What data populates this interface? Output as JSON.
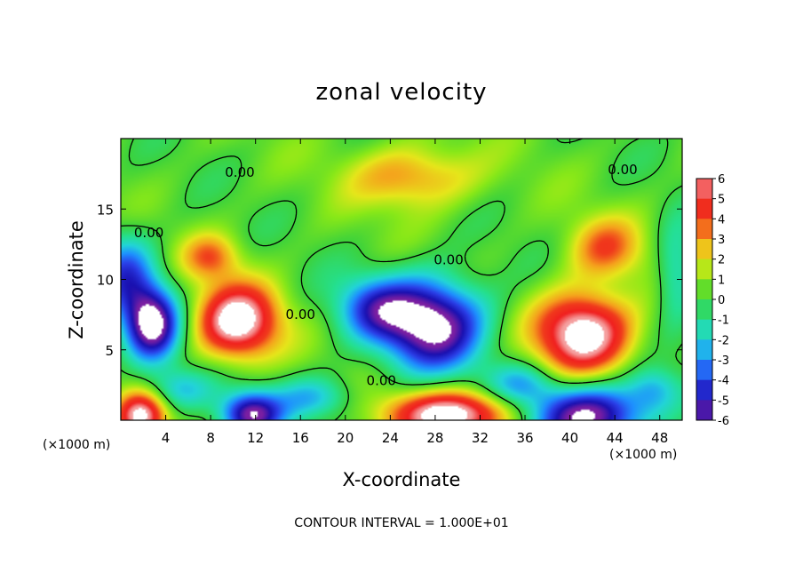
{
  "chart_data": {
    "type": "heatmap",
    "title": "zonal velocity",
    "xlabel": "X-coordinate",
    "ylabel": "Z-coordinate",
    "x_unit_left": "(×1000 m)",
    "x_unit_right": "(×1000 m)",
    "x_ticks": [
      4,
      8,
      12,
      16,
      20,
      24,
      28,
      32,
      36,
      40,
      44,
      48
    ],
    "y_ticks": [
      5,
      10,
      15
    ],
    "xlim": [
      0,
      50
    ],
    "ylim": [
      0,
      20
    ],
    "colorbar": {
      "ticks": [
        6,
        5,
        4,
        3,
        2,
        1,
        0,
        -1,
        -2,
        -3,
        -4,
        -5,
        -6
      ],
      "range": [
        -6,
        6
      ],
      "colors": {
        "-6": "#7a1fa2",
        "-5": "#1a10b0",
        "-4": "#2a3fe8",
        "-3": "#1e90ff",
        "-2": "#22d4d8",
        "-1": "#24e090",
        "0": "#3cd23c",
        "1": "#88e818",
        "2": "#e6e61a",
        "3": "#f5a21c",
        "4": "#f03a1c",
        "5": "#f01f1f",
        "6": "#f5a0a0"
      }
    },
    "contour_labels": [
      {
        "text": "0.00",
        "x": 10.6,
        "y": 17.6
      },
      {
        "text": "0.00",
        "x": 2.5,
        "y": 13.3
      },
      {
        "text": "0.00",
        "x": 16.0,
        "y": 7.5
      },
      {
        "text": "0.00",
        "x": 29.2,
        "y": 11.4
      },
      {
        "text": "0.00",
        "x": 23.2,
        "y": 2.8
      },
      {
        "text": "0.00",
        "x": 44.7,
        "y": 17.8
      }
    ],
    "blobs": [
      {
        "x": 2.8,
        "y": 6.8,
        "v": -7.0,
        "rx": 2.4,
        "ry": 2.6
      },
      {
        "x": 10.4,
        "y": 7.0,
        "v": 7.0,
        "rx": 3.6,
        "ry": 2.6
      },
      {
        "x": 27.8,
        "y": 6.8,
        "v": -7.2,
        "rx": 4.6,
        "ry": 3.2
      },
      {
        "x": 41.2,
        "y": 6.2,
        "v": 7.2,
        "rx": 4.2,
        "ry": 2.8
      },
      {
        "x": 1.8,
        "y": 0.3,
        "v": 6.2,
        "rx": 2.2,
        "ry": 1.7
      },
      {
        "x": 11.6,
        "y": 0.4,
        "v": -6.4,
        "rx": 2.7,
        "ry": 1.6
      },
      {
        "x": 29.5,
        "y": 0.4,
        "v": 7.0,
        "rx": 5.5,
        "ry": 1.7
      },
      {
        "x": 41.5,
        "y": 0.3,
        "v": -7.0,
        "rx": 5.2,
        "ry": 2.2
      },
      {
        "x": 26.0,
        "y": 17.3,
        "v": 3.0,
        "rx": 5.5,
        "ry": 2.2
      },
      {
        "x": 43.2,
        "y": 12.2,
        "v": 3.2,
        "rx": 3.3,
        "ry": 2.2
      },
      {
        "x": 8.0,
        "y": 11.6,
        "v": 3.0,
        "rx": 2.5,
        "ry": 1.6
      },
      {
        "x": 22.6,
        "y": 8.0,
        "v": -3.8,
        "rx": 3.6,
        "ry": 2.2
      },
      {
        "x": 0.5,
        "y": 10.2,
        "v": -4.0,
        "rx": 2.6,
        "ry": 3.0
      },
      {
        "x": 49.5,
        "y": 10.5,
        "v": -2.4,
        "rx": 1.8,
        "ry": 3.5
      },
      {
        "x": 17.2,
        "y": 1.6,
        "v": -2.6,
        "rx": 3.5,
        "ry": 1.5
      },
      {
        "x": 5.2,
        "y": 2.2,
        "v": -2.6,
        "rx": 3.0,
        "ry": 1.5
      },
      {
        "x": 35.5,
        "y": 2.6,
        "v": -2.6,
        "rx": 3.0,
        "ry": 1.5
      },
      {
        "x": 47.5,
        "y": 2.2,
        "v": -2.4,
        "rx": 2.4,
        "ry": 1.6
      }
    ],
    "footer": "CONTOUR INTERVAL = 1.000E+01"
  }
}
